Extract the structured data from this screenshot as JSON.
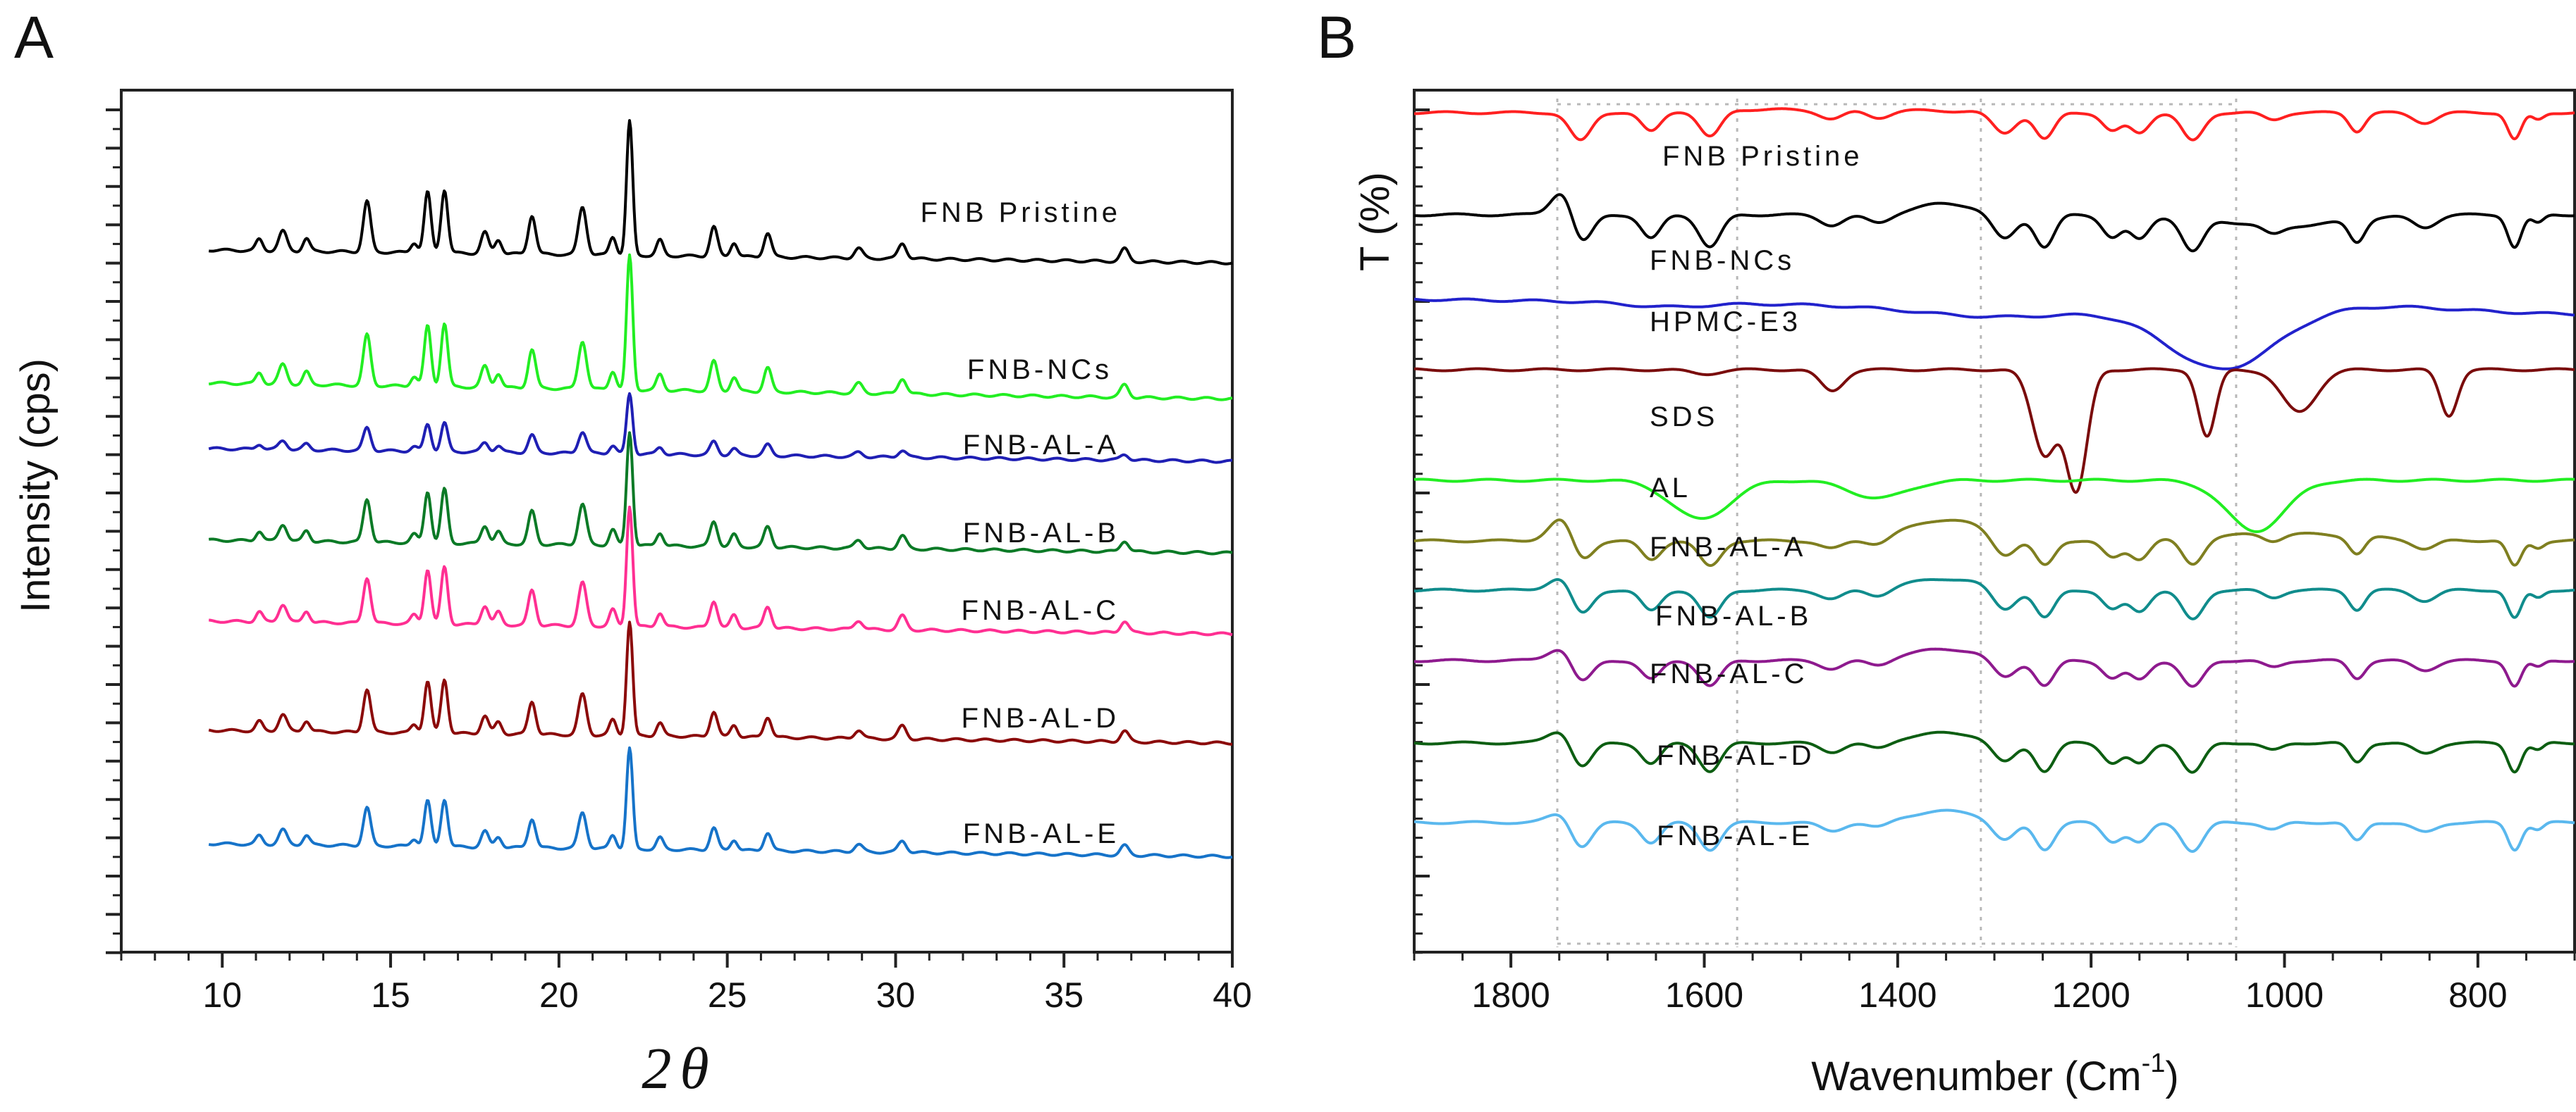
{
  "panels": {
    "a": {
      "letter": "A",
      "ylabel": "Intensity (cps)",
      "xlabel_num": "2",
      "xlabel_symbol": "θ"
    },
    "b": {
      "letter": "B",
      "ylabel": "T (%)",
      "xlabel_main": "Wavenumber (Cm",
      "xlabel_sup": "-1",
      "xlabel_close": ")"
    }
  },
  "chart_data": [
    {
      "type": "line",
      "panel": "A",
      "title": "",
      "xlabel": "2θ",
      "ylabel": "Intensity (cps)",
      "xlim": [
        7,
        40
      ],
      "xticks": [
        10,
        15,
        20,
        25,
        30,
        35,
        40
      ],
      "yticks_labeled": false,
      "peak_positions_2theta": [
        11.1,
        11.8,
        12.5,
        14.3,
        15.7,
        16.1,
        16.6,
        17.8,
        18.2,
        19.2,
        20.7,
        21.6,
        22.1,
        23.0,
        24.6,
        25.2,
        26.2,
        28.9,
        30.2,
        36.8
      ],
      "series": [
        {
          "name": "FNB Pristine",
          "color": "#000000",
          "peak_scale": 1.0
        },
        {
          "name": "FNB-NCs",
          "color": "#22ee22",
          "peak_scale": 1.0
        },
        {
          "name": "FNB-AL-A",
          "color": "#1f1fb4",
          "peak_scale": 0.45
        },
        {
          "name": "FNB-AL-B",
          "color": "#0b7a26",
          "peak_scale": 0.85
        },
        {
          "name": "FNB-AL-C",
          "color": "#ff2f92",
          "peak_scale": 0.9
        },
        {
          "name": "FNB-AL-D",
          "color": "#8b0a0a",
          "peak_scale": 0.85
        },
        {
          "name": "FNB-AL-E",
          "color": "#1673c9",
          "peak_scale": 0.75
        }
      ]
    },
    {
      "type": "line",
      "panel": "B",
      "title": "",
      "xlabel": "Wavenumber (Cm-1)",
      "ylabel": "T (%)",
      "xlim": [
        1900,
        700
      ],
      "xticks": [
        1800,
        1600,
        1400,
        1200,
        1000,
        800
      ],
      "reference_lines_cm-1": [
        1752,
        1566,
        1314,
        1050
      ],
      "series": [
        {
          "name": "FNB Pristine",
          "color": "#ff2020"
        },
        {
          "name": "FNB-NCs",
          "color": "#000000"
        },
        {
          "name": "HPMC-E3",
          "color": "#2222cc"
        },
        {
          "name": "SDS",
          "color": "#7a0c0c"
        },
        {
          "name": "AL",
          "color": "#22ee22"
        },
        {
          "name": "FNB-AL-A",
          "color": "#7f7f20"
        },
        {
          "name": "FNB-AL-B",
          "color": "#108c8c"
        },
        {
          "name": "FNB-AL-C",
          "color": "#8e1a8e"
        },
        {
          "name": "FNB-AL-D",
          "color": "#0d5e12"
        },
        {
          "name": "FNB-AL-E",
          "color": "#5ab8ee"
        }
      ]
    }
  ]
}
